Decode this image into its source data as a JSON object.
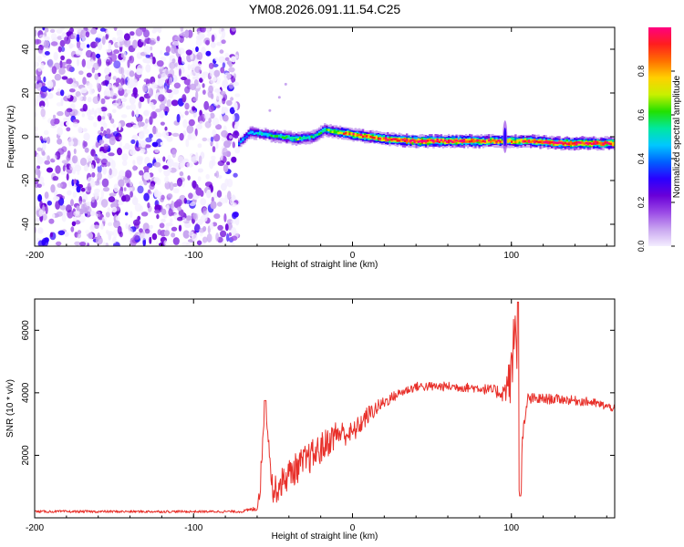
{
  "figure": {
    "title": "YM08.2026.091.11.54.C25"
  },
  "colors": {
    "snr_line": "#e8302a",
    "colormap": [
      "#f4eeff",
      "#c9a6f0",
      "#9b4be6",
      "#6a00d8",
      "#2a00ff",
      "#0060ff",
      "#00c8ff",
      "#00e8a0",
      "#22e000",
      "#c8f000",
      "#ffd000",
      "#ff7000",
      "#ff1e1e",
      "#ff0080"
    ]
  },
  "chart_data": [
    {
      "type": "heatmap",
      "name": "spectrogram",
      "title": "YM08.2026.091.11.54.C25",
      "xlabel": "Height of straight line (km)",
      "ylabel": "Frequency (Hz)",
      "xlim": [
        -200,
        165
      ],
      "ylim": [
        -50,
        50
      ],
      "xticks": [
        -200,
        -100,
        0,
        100
      ],
      "yticks": [
        -40,
        -20,
        0,
        20,
        40
      ],
      "colorbar": {
        "label": "Normalized spectral amplitude",
        "range": [
          0,
          1
        ],
        "ticks": [
          "0.0",
          "0.2",
          "0.4",
          "0.6",
          "0.8"
        ]
      },
      "noise_region_x": [
        -200,
        -72
      ],
      "ridge": [
        {
          "x": -72,
          "f": -3,
          "amp": 0.4
        },
        {
          "x": -65,
          "f": 2,
          "amp": 0.45
        },
        {
          "x": -55,
          "f": 1,
          "amp": 0.5
        },
        {
          "x": -45,
          "f": 0,
          "amp": 0.55
        },
        {
          "x": -35,
          "f": -1,
          "amp": 0.6
        },
        {
          "x": -25,
          "f": 0,
          "amp": 0.5
        },
        {
          "x": -18,
          "f": 3,
          "amp": 0.6
        },
        {
          "x": -10,
          "f": 2,
          "amp": 0.7
        },
        {
          "x": 0,
          "f": 1,
          "amp": 0.85
        },
        {
          "x": 20,
          "f": -1,
          "amp": 0.9
        },
        {
          "x": 40,
          "f": -2,
          "amp": 0.95
        },
        {
          "x": 60,
          "f": -2,
          "amp": 0.97
        },
        {
          "x": 80,
          "f": -2,
          "amp": 0.9
        },
        {
          "x": 95,
          "f": -2,
          "amp": 0.8
        },
        {
          "x": 110,
          "f": -2,
          "amp": 0.9
        },
        {
          "x": 130,
          "f": -3,
          "amp": 0.95
        },
        {
          "x": 150,
          "f": -3,
          "amp": 0.97
        },
        {
          "x": 165,
          "f": -3,
          "amp": 0.85
        }
      ]
    },
    {
      "type": "line",
      "name": "snr",
      "xlabel": "Height of straight line (km)",
      "ylabel": "SNR (10 * v/v)",
      "xlim": [
        -200,
        165
      ],
      "ylim": [
        0,
        7000
      ],
      "xticks": [
        -200,
        -100,
        0,
        100
      ],
      "yticks": [
        2000,
        4000,
        6000
      ],
      "series": [
        {
          "name": "SNR",
          "color": "#e8302a",
          "x": [
            -200,
            -150,
            -100,
            -70,
            -60,
            -58,
            -55,
            -50,
            -40,
            -30,
            -20,
            -10,
            0,
            10,
            20,
            30,
            40,
            60,
            80,
            90,
            95,
            100,
            103,
            105,
            110,
            130,
            150,
            165
          ],
          "y": [
            200,
            200,
            200,
            200,
            300,
            1100,
            3700,
            800,
            1400,
            1800,
            2200,
            2700,
            2700,
            3300,
            3700,
            4000,
            4200,
            4200,
            4150,
            4050,
            4000,
            4500,
            6800,
            1000,
            3800,
            3800,
            3700,
            3500
          ],
          "amplitude": [
            40,
            40,
            40,
            40,
            80,
            400,
            0,
            450,
            500,
            520,
            520,
            450,
            350,
            300,
            200,
            150,
            150,
            150,
            150,
            200,
            300,
            900,
            1500,
            1200,
            200,
            150,
            150,
            120
          ]
        }
      ]
    }
  ]
}
